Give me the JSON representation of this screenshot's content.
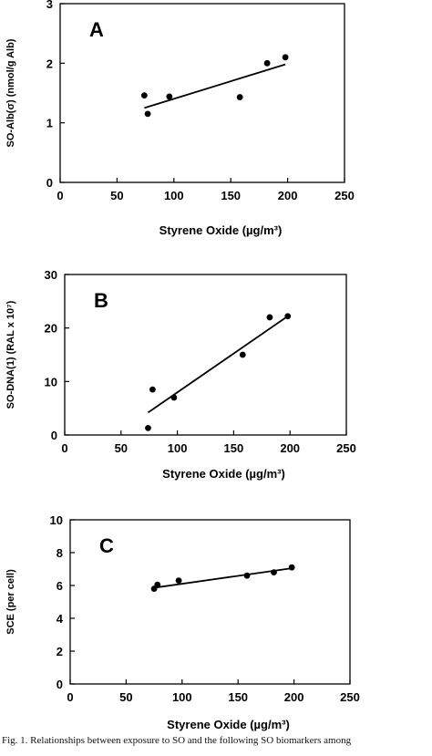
{
  "caption": "Fig. 1. Relationships between exposure to SO and the following SO biomarkers among",
  "chart_data": [
    {
      "type": "scatter",
      "panel_label": "A",
      "xlabel": "Styrene Oxide (µg/m³)",
      "ylabel": "SO-Alb(σ) (nmol/g Alb)",
      "xlim": [
        0,
        250
      ],
      "ylim": [
        0,
        3
      ],
      "x_ticks": [
        "0",
        "50",
        "100",
        "150",
        "200",
        "250"
      ],
      "y_ticks": [
        "0",
        "1",
        "2",
        "3"
      ],
      "points": [
        {
          "x": 74,
          "y": 1.46
        },
        {
          "x": 77,
          "y": 1.15
        },
        {
          "x": 96,
          "y": 1.44
        },
        {
          "x": 158,
          "y": 1.43
        },
        {
          "x": 182,
          "y": 2.0
        },
        {
          "x": 198,
          "y": 2.1
        }
      ],
      "trendline": [
        {
          "x": 74,
          "y": 1.25
        },
        {
          "x": 198,
          "y": 1.98
        }
      ],
      "grid": false,
      "legend": "none"
    },
    {
      "type": "scatter",
      "panel_label": "B",
      "xlabel": "Styrene Oxide (µg/m³)",
      "ylabel": "SO-DNA(1) (RAL x 10⁷)",
      "xlim": [
        0,
        250
      ],
      "ylim": [
        0,
        30
      ],
      "x_ticks": [
        "0",
        "50",
        "100",
        "150",
        "200",
        "250"
      ],
      "y_ticks": [
        "0",
        "10",
        "20",
        "30"
      ],
      "points": [
        {
          "x": 74,
          "y": 1.3
        },
        {
          "x": 78,
          "y": 8.5
        },
        {
          "x": 97,
          "y": 7.0
        },
        {
          "x": 158,
          "y": 15.0
        },
        {
          "x": 182,
          "y": 22.0
        },
        {
          "x": 198,
          "y": 22.2
        }
      ],
      "trendline": [
        {
          "x": 74,
          "y": 4.2
        },
        {
          "x": 198,
          "y": 22.2
        }
      ],
      "grid": false,
      "legend": "none"
    },
    {
      "type": "scatter",
      "panel_label": "C",
      "xlabel": "Styrene Oxide (µg/m³)",
      "ylabel": "SCE (per cell)",
      "xlim": [
        0,
        250
      ],
      "ylim": [
        0,
        10
      ],
      "x_ticks": [
        "0",
        "50",
        "100",
        "150",
        "200",
        "250"
      ],
      "y_ticks": [
        "0",
        "2",
        "4",
        "6",
        "8",
        "10"
      ],
      "points": [
        {
          "x": 75,
          "y": 5.8
        },
        {
          "x": 78,
          "y": 6.05
        },
        {
          "x": 97,
          "y": 6.3
        },
        {
          "x": 158,
          "y": 6.6
        },
        {
          "x": 182,
          "y": 6.8
        },
        {
          "x": 198,
          "y": 7.1
        }
      ],
      "trendline": [
        {
          "x": 74,
          "y": 5.85
        },
        {
          "x": 198,
          "y": 7.05
        }
      ],
      "grid": false,
      "legend": "none"
    }
  ]
}
